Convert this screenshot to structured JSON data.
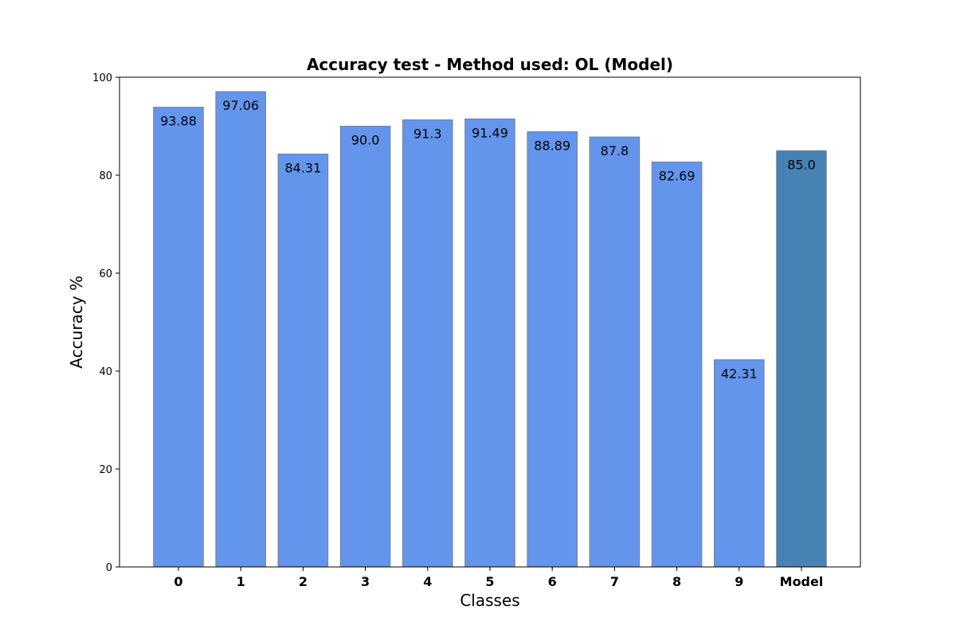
{
  "chart_data": {
    "type": "bar",
    "title": "Accuracy test - Method used: OL (Model)",
    "xlabel": "Classes",
    "ylabel": "Accuracy %",
    "categories": [
      "0",
      "1",
      "2",
      "3",
      "4",
      "5",
      "6",
      "7",
      "8",
      "9",
      "Model"
    ],
    "values": [
      93.88,
      97.06,
      84.31,
      90.0,
      91.3,
      91.49,
      88.89,
      87.8,
      82.69,
      42.31,
      85.0
    ],
    "value_labels": [
      "93.88",
      "97.06",
      "84.31",
      "90.0",
      "91.3",
      "91.49",
      "88.89",
      "87.8",
      "82.69",
      "42.31",
      "85.0"
    ],
    "ylim": [
      0,
      100
    ],
    "yticks": [
      0,
      20,
      40,
      60,
      80,
      100
    ],
    "ytick_labels": [
      "0",
      "20",
      "40",
      "60",
      "80",
      "100"
    ],
    "grid": false,
    "colors": {
      "class_bar": "#6495ED",
      "model_bar": "#4682B4",
      "bar_edge": "#808080"
    }
  }
}
